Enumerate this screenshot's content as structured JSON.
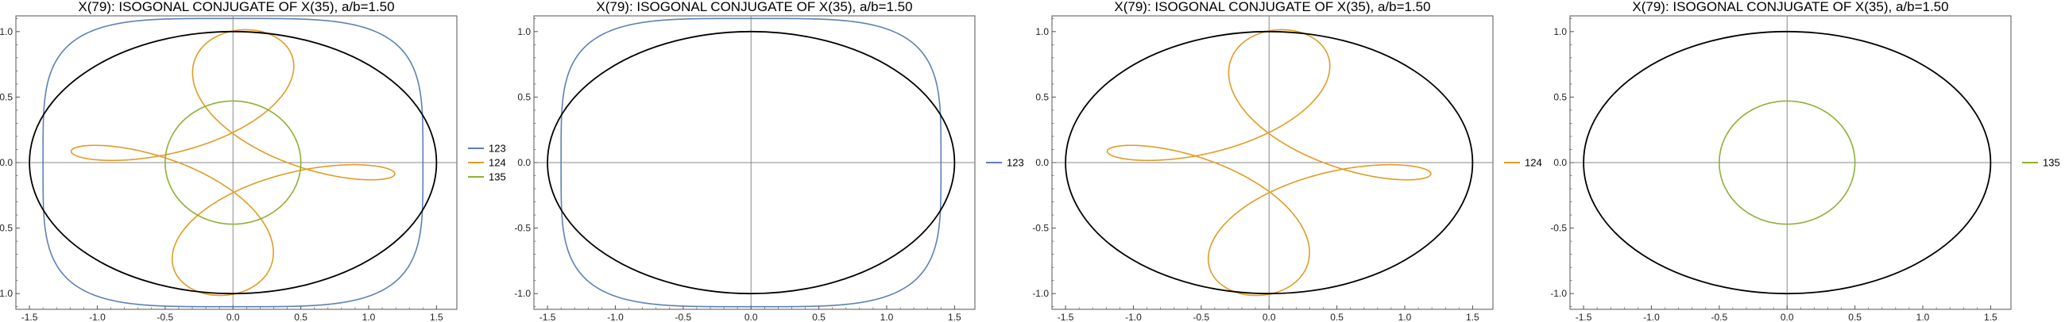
{
  "colors": {
    "s123": "#5e81b5",
    "s124": "#e19c24",
    "s135": "#8fb032",
    "ellipse": "#000000",
    "axis": "#888888",
    "frame": "#555555"
  },
  "chart_data": [
    {
      "type": "line",
      "title": "X(79): ISOGONAL CONJUGATE OF X(35), a/b=1.50",
      "xlim": [
        -1.6,
        1.65
      ],
      "ylim": [
        -1.12,
        1.12
      ],
      "xticks": [
        "-1.5",
        "-1.0",
        "-0.5",
        "0.0",
        "0.5",
        "1.0",
        "1.5"
      ],
      "yticks": [
        "-1.0",
        "-0.5",
        "0.0",
        "0.5",
        "1.0"
      ],
      "grid": false,
      "legend_position": "right",
      "series": [
        {
          "name": "123",
          "curve": "superellipse",
          "ax": 1.4,
          "ay": 1.1
        },
        {
          "name": "124",
          "curve": "looped",
          "radius": 1.0
        },
        {
          "name": "135",
          "curve": "ellipse",
          "ax": 0.5,
          "ay": 0.47
        }
      ],
      "reference_ellipse": {
        "a": 1.5,
        "b": 1.0
      }
    },
    {
      "type": "line",
      "title": "X(79): ISOGONAL CONJUGATE OF X(35), a/b=1.50",
      "xlim": [
        -1.6,
        1.65
      ],
      "ylim": [
        -1.12,
        1.12
      ],
      "xticks": [
        "-1.5",
        "-1.0",
        "-0.5",
        "0.0",
        "0.5",
        "1.0",
        "1.5"
      ],
      "yticks": [
        "-1.0",
        "-0.5",
        "0.0",
        "0.5",
        "1.0"
      ],
      "grid": false,
      "legend_position": "right",
      "series": [
        {
          "name": "123",
          "curve": "superellipse",
          "ax": 1.4,
          "ay": 1.1
        }
      ],
      "reference_ellipse": {
        "a": 1.5,
        "b": 1.0
      }
    },
    {
      "type": "line",
      "title": "X(79): ISOGONAL CONJUGATE OF X(35), a/b=1.50",
      "xlim": [
        -1.6,
        1.65
      ],
      "ylim": [
        -1.12,
        1.12
      ],
      "xticks": [
        "-1.5",
        "-1.0",
        "-0.5",
        "0.0",
        "0.5",
        "1.0",
        "1.5"
      ],
      "yticks": [
        "-1.0",
        "-0.5",
        "0.0",
        "0.5",
        "1.0"
      ],
      "grid": false,
      "legend_position": "right",
      "series": [
        {
          "name": "124",
          "curve": "looped",
          "radius": 1.0
        }
      ],
      "reference_ellipse": {
        "a": 1.5,
        "b": 1.0
      }
    },
    {
      "type": "line",
      "title": "X(79): ISOGONAL CONJUGATE OF X(35), a/b=1.50",
      "xlim": [
        -1.6,
        1.65
      ],
      "ylim": [
        -1.12,
        1.12
      ],
      "xticks": [
        "-1.5",
        "-1.0",
        "-0.5",
        "0.0",
        "0.5",
        "1.0",
        "1.5"
      ],
      "yticks": [
        "-1.0",
        "-0.5",
        "0.0",
        "0.5",
        "1.0"
      ],
      "grid": false,
      "legend_position": "right",
      "series": [
        {
          "name": "135",
          "curve": "ellipse",
          "ax": 0.5,
          "ay": 0.47
        }
      ],
      "reference_ellipse": {
        "a": 1.5,
        "b": 1.0
      }
    }
  ]
}
